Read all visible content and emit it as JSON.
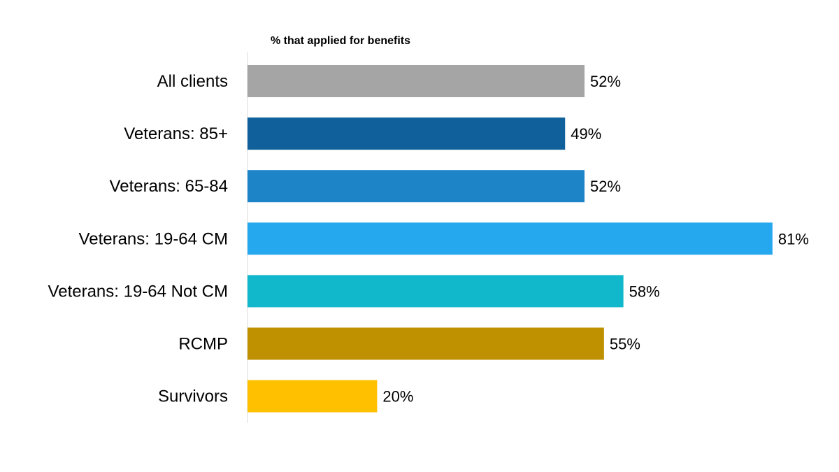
{
  "chart_data": {
    "type": "bar",
    "orientation": "horizontal",
    "title": "% that applied for benefits",
    "categories": [
      "All clients",
      "Veterans: 85+",
      "Veterans: 65-84",
      "Veterans: 19-64 CM",
      "Veterans: 19-64 Not CM",
      "RCMP",
      "Survivors"
    ],
    "values": [
      52,
      49,
      52,
      81,
      58,
      55,
      20
    ],
    "value_labels": [
      "52%",
      "49%",
      "52%",
      "81%",
      "58%",
      "55%",
      "20%"
    ],
    "colors": [
      "#A5A5A5",
      "#10609B",
      "#1E84C8",
      "#26A8EF",
      "#11B8CC",
      "#BF9000",
      "#FFC000"
    ],
    "xlim": [
      0,
      100
    ],
    "unit": "%",
    "grid": false,
    "legend": "none"
  }
}
